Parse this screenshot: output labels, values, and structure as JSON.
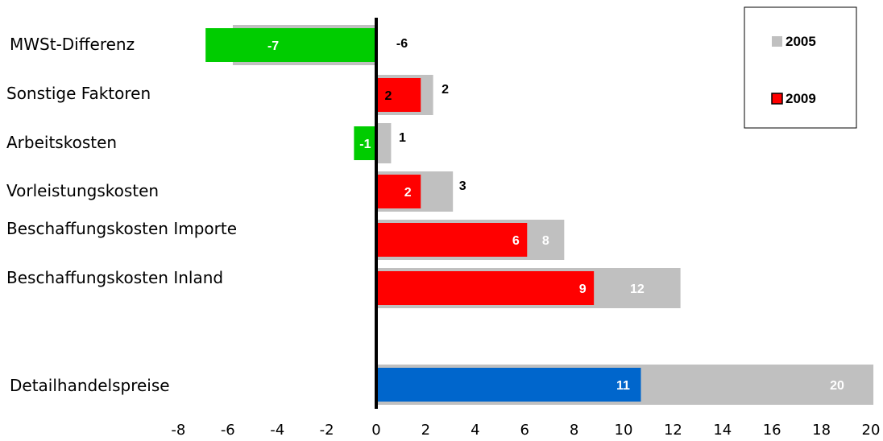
{
  "chart_data": {
    "type": "bar",
    "orientation": "horizontal",
    "xlim": [
      -8,
      20
    ],
    "x_ticks": [
      "-8",
      "-6",
      "-4",
      "-2",
      "0",
      "2",
      "4",
      "6",
      "8",
      "10",
      "12",
      "14",
      "16",
      "18",
      "20"
    ],
    "categories": [
      "MWSt-Differenz",
      "Sonstige Faktoren",
      "Arbeitskosten",
      "Vorleistungskosten",
      "Beschaffungskosten Importe",
      "Beschaffungskosten Inland",
      "Detailhandelspreise"
    ],
    "series": [
      {
        "name": "2005",
        "color": "#c0c0c0",
        "values": [
          -5.8,
          2.3,
          0.6,
          3.1,
          7.6,
          12.3,
          20.1
        ],
        "labels": [
          "-6",
          "2",
          "1",
          "3",
          "8",
          "12",
          "20"
        ]
      },
      {
        "name": "2009",
        "values": [
          -6.9,
          1.8,
          -0.9,
          1.8,
          6.1,
          8.8,
          10.7
        ],
        "labels": [
          "-7",
          "2",
          "-1",
          "2",
          "6",
          "9",
          "11"
        ],
        "colors": [
          "#00cc00",
          "#ff0000",
          "#00cc00",
          "#ff0000",
          "#ff0000",
          "#ff0000",
          "#0066cc"
        ]
      }
    ],
    "legend": {
      "position": "top-right",
      "entries": [
        "2005",
        "2009"
      ]
    },
    "grid": false
  }
}
